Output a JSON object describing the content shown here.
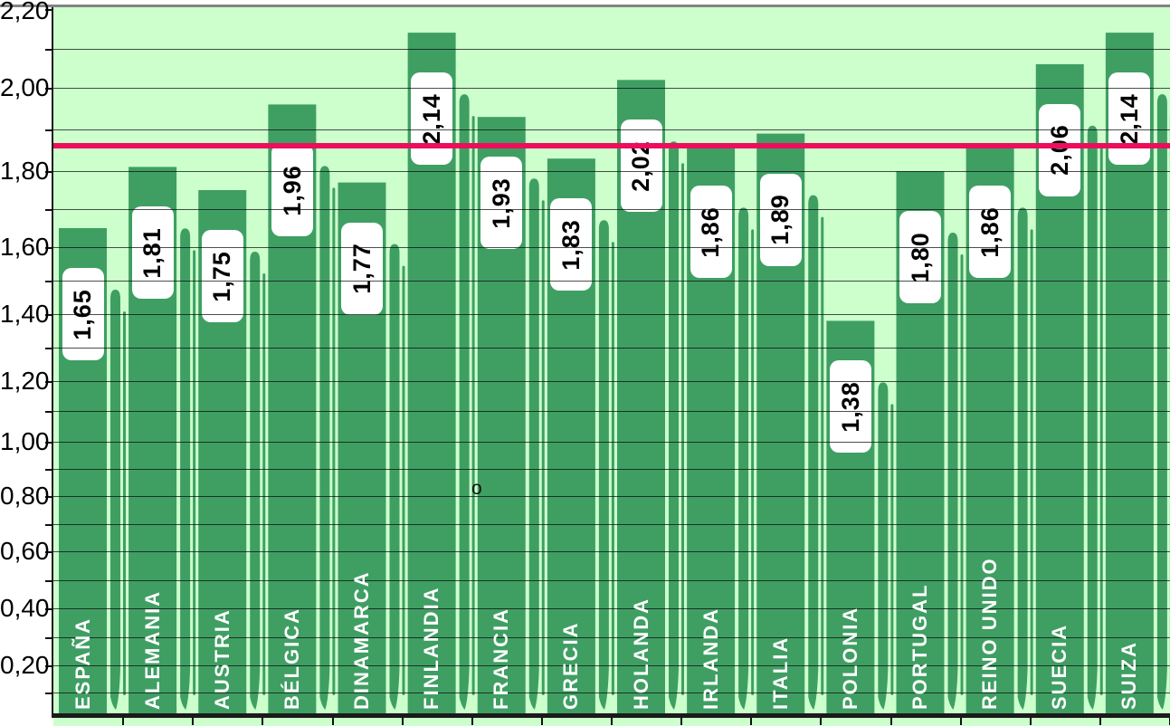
{
  "chart_data": {
    "type": "bar",
    "title": "",
    "xlabel": "",
    "ylabel": "",
    "categories": [
      "ESPAÑA",
      "ALEMANIA",
      "AUSTRIA",
      "BÉLGICA",
      "DINAMARCA",
      "FINLANDIA",
      "FRANCIA",
      "GRECIA",
      "HOLANDA",
      "IRLANDA",
      "ITALIA",
      "POLONIA",
      "PORTUGAL",
      "REINO UNIDO",
      "SUECIA",
      "SUIZA"
    ],
    "values": [
      1.65,
      1.81,
      1.75,
      1.96,
      1.77,
      2.14,
      1.93,
      1.83,
      2.02,
      1.86,
      1.89,
      1.38,
      1.8,
      1.86,
      2.06,
      2.14
    ],
    "value_labels": [
      "1,65",
      "1,81",
      "1,75",
      "1,96",
      "1,77",
      "2,14",
      "1,93",
      "1,83",
      "2,02",
      "1,86",
      "1,89",
      "1,38",
      "1,80",
      "1,86",
      "2,06",
      "2,14"
    ],
    "y_axis": {
      "tick_labels": [
        "2,20",
        "2,00",
        "1,80",
        "1,60",
        "1,40",
        "1,20",
        "1,00",
        "0,80",
        "0,60",
        "0,40",
        "0,20"
      ],
      "tick_values": [
        2.2,
        2.0,
        1.8,
        1.6,
        1.4,
        1.2,
        1.0,
        0.8,
        0.6,
        0.4,
        0.2
      ],
      "label_step": 0.2,
      "grid_step": 0.1,
      "range_shown": [
        0.1,
        2.2
      ],
      "decimal_separator": ","
    },
    "reference_line": {
      "value": 1.86,
      "color": "#ec0e5c"
    },
    "legend": "none",
    "grid": "horizontal",
    "colors": {
      "bar": "#3f9f63",
      "plot_background": "#ccffcc",
      "gridline": "#1a1a1a",
      "value_label_text": "#000000",
      "value_label_box": "#ffffff",
      "category_label_text": "#ffffff",
      "reference_line": "#ec0e5c"
    },
    "category_label_orientation": "rotated-90-bottom-to-top",
    "value_label_orientation": "rotated-90-bottom-to-top",
    "artifact_text": "o"
  }
}
